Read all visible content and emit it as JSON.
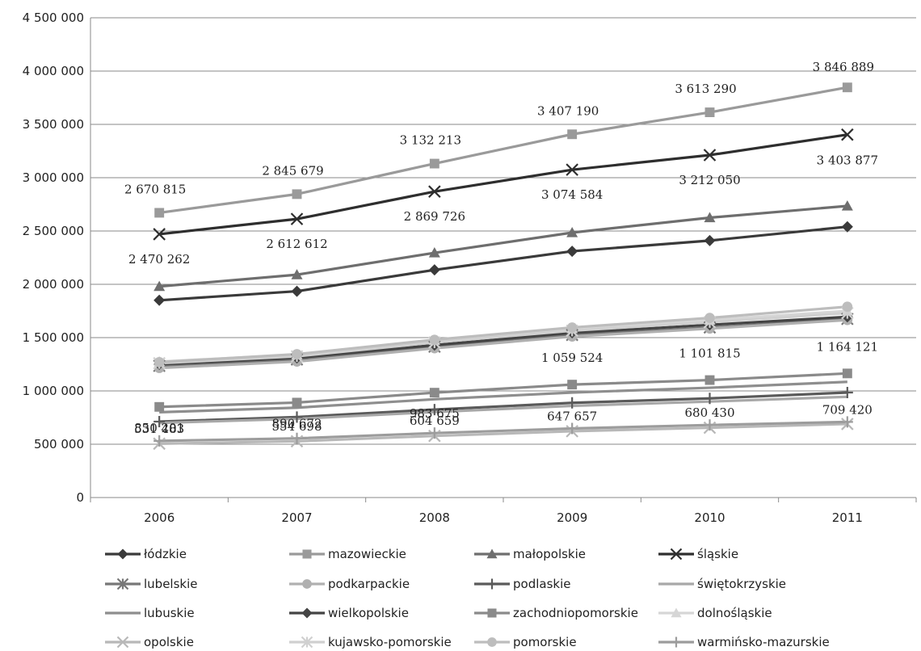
{
  "chart_data": {
    "type": "line",
    "title": "",
    "xlabel": "",
    "ylabel": "",
    "ylim": [
      0,
      4500000
    ],
    "y_ticks": [
      "0",
      "500 000",
      "1 000 000",
      "1 500 000",
      "2 000 000",
      "2 500 000",
      "3 000 000",
      "3 500 000",
      "4 000 000",
      "4 500 000"
    ],
    "categories": [
      "2006",
      "2007",
      "2008",
      "2009",
      "2010",
      "2011"
    ],
    "grid": true,
    "legend_position": "bottom",
    "series": [
      {
        "name": "łódzkie",
        "color": "#3a3a3a",
        "marker": "diamond",
        "values": [
          1850000,
          1935000,
          2135000,
          2310000,
          2410000,
          2540000
        ]
      },
      {
        "name": "mazowieckie",
        "color": "#9a9a9a",
        "marker": "square",
        "values": [
          2670815,
          2845679,
          3132213,
          3407190,
          3613290,
          3846889
        ],
        "data_labels": [
          "2 670 815",
          "2 845 679",
          "3 132 213",
          "3 407 190",
          "3 613 290",
          "3 846 889"
        ]
      },
      {
        "name": "małopolskie",
        "color": "#6e6e6e",
        "marker": "triangle",
        "values": [
          1980000,
          2090000,
          2295000,
          2485000,
          2625000,
          2735000
        ]
      },
      {
        "name": "śląskie",
        "color": "#2e2e2e",
        "marker": "x",
        "values": [
          2470262,
          2612612,
          2869726,
          3074584,
          3212050,
          3403877
        ],
        "data_labels": [
          "2 470 262",
          "2 612 612",
          "2 869 726",
          "3 074 584",
          "3 212 050",
          "3 403 877"
        ]
      },
      {
        "name": "lubelskie",
        "color": "#777777",
        "marker": "star",
        "values": [
          1235000,
          1295000,
          1415000,
          1525000,
          1595000,
          1675000
        ]
      },
      {
        "name": "podkarpackie",
        "color": "#b0b0b0",
        "marker": "circle",
        "values": [
          1215000,
          1275000,
          1400000,
          1510000,
          1585000,
          1665000
        ]
      },
      {
        "name": "podlaskie",
        "color": "#5a5a5a",
        "marker": "plus",
        "values": [
          712000,
          755000,
          825000,
          888000,
          930000,
          985000
        ]
      },
      {
        "name": "świętokrzyskie",
        "color": "#a8a8a8",
        "marker": "none",
        "values": [
          700000,
          738000,
          802000,
          860000,
          900000,
          945000
        ]
      },
      {
        "name": "lubuskie",
        "color": "#8e8e8e",
        "marker": "none",
        "values": [
          800000,
          843000,
          922000,
          985000,
          1030000,
          1085000
        ]
      },
      {
        "name": "wielkopolskie",
        "color": "#444444",
        "marker": "diamond",
        "values": [
          1250000,
          1310000,
          1430000,
          1545000,
          1620000,
          1695000
        ]
      },
      {
        "name": "zachodniopomorskie",
        "color": "#8a8a8a",
        "marker": "square",
        "values": [
          850201,
          890672,
          983675,
          1059524,
          1101815,
          1164121
        ],
        "data_labels": [
          "850 201",
          "890 672",
          "983 675",
          "1 059 524",
          "1 101 815",
          "1 164 121"
        ]
      },
      {
        "name": "dolnośląskie",
        "color": "#d6d6d6",
        "marker": "triangle",
        "values": [
          1275000,
          1340000,
          1475000,
          1585000,
          1665000,
          1750000
        ]
      },
      {
        "name": "opolskie",
        "color": "#b8b8b8",
        "marker": "x",
        "values": [
          505000,
          528000,
          578000,
          622000,
          655000,
          690000
        ]
      },
      {
        "name": "kujawsko-pomorskie",
        "color": "#d0d0d0",
        "marker": "star",
        "values": [
          1260000,
          1325000,
          1455000,
          1565000,
          1645000,
          1730000
        ]
      },
      {
        "name": "pomorskie",
        "color": "#bdbdbd",
        "marker": "circle",
        "values": [
          1270000,
          1345000,
          1480000,
          1595000,
          1685000,
          1790000
        ]
      },
      {
        "name": "warmińsko-mazurskie",
        "color": "#9c9c9c",
        "marker": "plus",
        "values": [
          531483,
          554698,
          604659,
          647657,
          680430,
          709420
        ],
        "data_labels": [
          "531 483",
          "554 698",
          "604 659",
          "647 657",
          "680 430",
          "709 420"
        ]
      }
    ]
  }
}
